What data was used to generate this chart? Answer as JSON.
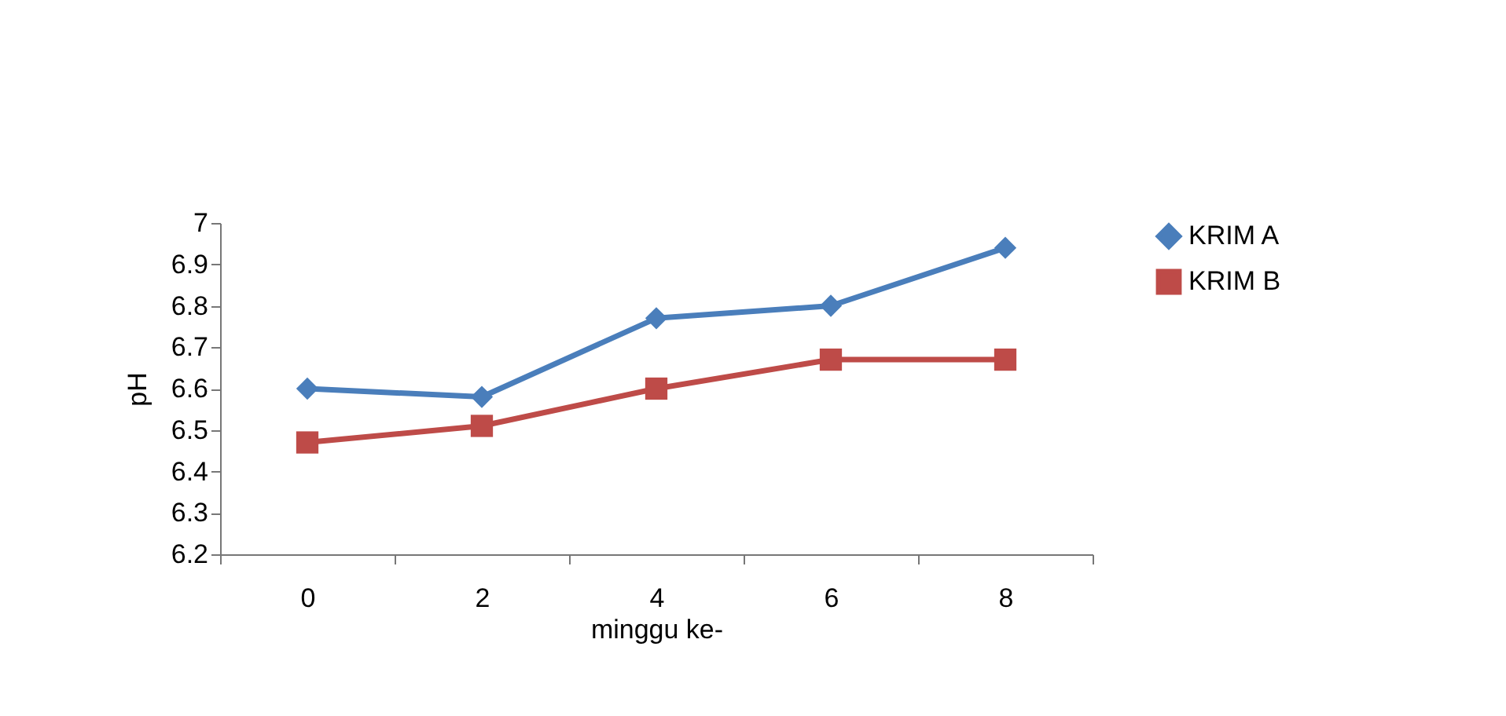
{
  "chart_data": {
    "type": "line",
    "xlabel": "minggu ke-",
    "ylabel": "pH",
    "categories": [
      "0",
      "2",
      "4",
      "6",
      "8"
    ],
    "series": [
      {
        "name": "KRIM A",
        "color": "#4a7ebb",
        "marker": "diamond",
        "values": [
          6.6,
          6.58,
          6.77,
          6.8,
          6.94
        ]
      },
      {
        "name": "KRIM B",
        "color": "#be4b48",
        "marker": "square",
        "values": [
          6.47,
          6.51,
          6.6,
          6.67,
          6.67
        ]
      }
    ],
    "ylim": [
      6.2,
      7
    ],
    "yticks": [
      6.2,
      6.3,
      6.4,
      6.5,
      6.6,
      6.7,
      6.8,
      6.9,
      7
    ],
    "grid": false,
    "legend": "right",
    "line_style": "solid"
  }
}
